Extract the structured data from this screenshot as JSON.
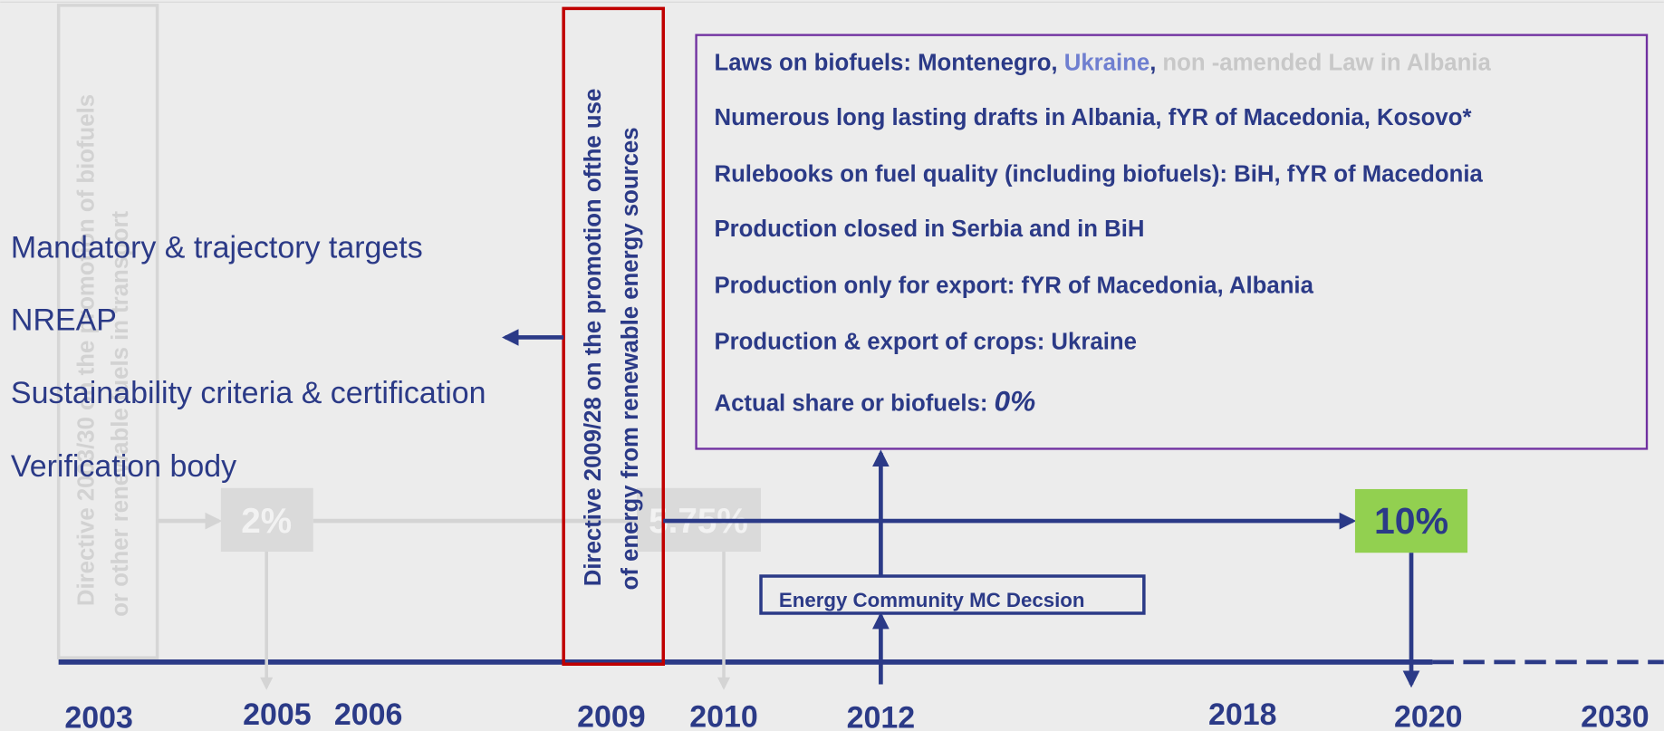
{
  "directives": {
    "old": {
      "line1": "Directive 2003/30 on the promotion of biofuels",
      "line2": "or other renewable fuels in transport"
    },
    "new": {
      "line1": "Directive 2009/28 on the promotion ofthe use",
      "line2": "of energy from renewable energy sources"
    }
  },
  "requirements": [
    "Mandatory & trajectory targets",
    "NREAP",
    "Sustainability criteria & certification",
    "Verification body"
  ],
  "targets": {
    "t2005": "2%",
    "t2010": "5.75%",
    "t2020": "10%"
  },
  "decision": "Energy Community MC Decsion",
  "status": {
    "first": {
      "intro": "Laws on biofuels: Montenegro, ",
      "ukraine": "Ukraine",
      "sep": ",",
      "albania": "non -amended Law in Albania"
    },
    "items": [
      "Numerous long lasting drafts in Albania, fYR of Macedonia, Kosovo*",
      "Rulebooks on fuel quality (including biofuels): BiH, fYR of Macedonia",
      "Production closed in Serbia and in BiH",
      "Production only for export: fYR of Macedonia, Albania",
      "Production & export of crops: Ukraine"
    ],
    "share": {
      "label": "Actual share or biofuels: ",
      "value": "0%"
    }
  },
  "years": [
    "2003",
    "2005",
    "2006",
    "2009",
    "2010",
    "2012",
    "2018",
    "2020",
    "2030"
  ]
}
